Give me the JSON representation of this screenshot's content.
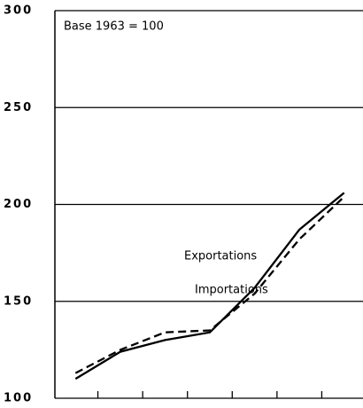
{
  "chart_data": {
    "type": "line",
    "annotation": "Base 1963 = 100",
    "categories": [
      null,
      null,
      null,
      null,
      null,
      null,
      null
    ],
    "series": [
      {
        "name": "Exportations",
        "color": "#000000",
        "dash": "solid",
        "values": [
          110,
          124,
          130,
          134,
          157,
          187,
          206
        ]
      },
      {
        "name": "Importations",
        "color": "#000000",
        "dash": "dashed",
        "values": [
          113,
          125,
          134,
          135,
          154,
          182,
          204
        ]
      }
    ],
    "ylim": [
      100,
      300
    ],
    "yticks": [
      100,
      150,
      200,
      250,
      300
    ],
    "grid": true
  }
}
